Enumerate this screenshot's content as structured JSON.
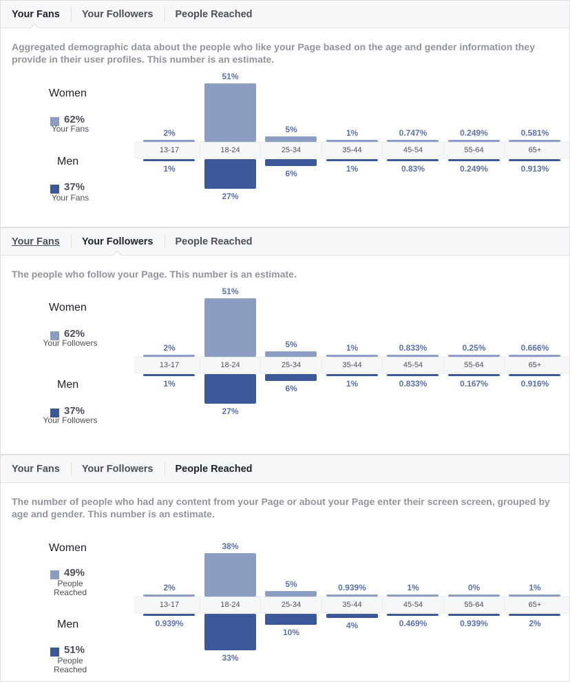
{
  "colors": {
    "women": "#8b9dc3",
    "men": "#3b5998"
  },
  "age_groups": [
    "13-17",
    "18-24",
    "25-34",
    "35-44",
    "45-54",
    "55-64",
    "65+"
  ],
  "panels": [
    {
      "tabs": [
        "Your Fans",
        "Your Followers",
        "People Reached"
      ],
      "active_tab": 0,
      "underlined_tab": -1,
      "description": "Aggregated demographic data about the people who like your Page based on the age and gender information they provide in their user profiles. This number is an estimate.",
      "women": {
        "label": "Women",
        "total": "62%",
        "sub": "Your Fans"
      },
      "men": {
        "label": "Men",
        "total": "37%",
        "sub": "Your Fans"
      },
      "women_values": [
        2,
        51,
        5,
        1,
        0.747,
        0.249,
        0.581
      ],
      "women_labels": [
        "2%",
        "51%",
        "5%",
        "1%",
        "0.747%",
        "0.249%",
        "0.581%"
      ],
      "men_values": [
        1,
        27,
        6,
        1,
        0.83,
        0.249,
        0.913
      ],
      "men_labels": [
        "1%",
        "27%",
        "6%",
        "1%",
        "0.83%",
        "0.249%",
        "0.913%"
      ]
    },
    {
      "tabs": [
        "Your Fans",
        "Your Followers",
        "People Reached"
      ],
      "active_tab": 1,
      "underlined_tab": 0,
      "description": "The people who follow your Page. This number is an estimate.",
      "women": {
        "label": "Women",
        "total": "62%",
        "sub": "Your Followers"
      },
      "men": {
        "label": "Men",
        "total": "37%",
        "sub": "Your Followers"
      },
      "women_values": [
        2,
        51,
        5,
        1,
        0.833,
        0.25,
        0.666
      ],
      "women_labels": [
        "2%",
        "51%",
        "5%",
        "1%",
        "0.833%",
        "0.25%",
        "0.666%"
      ],
      "men_values": [
        1,
        27,
        6,
        1,
        0.833,
        0.167,
        0.916
      ],
      "men_labels": [
        "1%",
        "27%",
        "6%",
        "1%",
        "0.833%",
        "0.167%",
        "0.916%"
      ]
    },
    {
      "tabs": [
        "Your Fans",
        "Your Followers",
        "People Reached"
      ],
      "active_tab": 2,
      "underlined_tab": -1,
      "description": "The number of people who had any content from your Page or about your Page enter their screen screen, grouped by age and gender. This number is an estimate.",
      "women": {
        "label": "Women",
        "total": "49%",
        "sub": "People Reached"
      },
      "men": {
        "label": "Men",
        "total": "51%",
        "sub": "People Reached"
      },
      "women_values": [
        2,
        38,
        5,
        0.939,
        1,
        0,
        1
      ],
      "women_labels": [
        "2%",
        "38%",
        "5%",
        "0.939%",
        "1%",
        "0%",
        "1%"
      ],
      "men_values": [
        0.939,
        33,
        10,
        4,
        0.469,
        0.939,
        2
      ],
      "men_labels": [
        "0.939%",
        "33%",
        "10%",
        "4%",
        "0.469%",
        "0.939%",
        "2%"
      ]
    }
  ]
}
